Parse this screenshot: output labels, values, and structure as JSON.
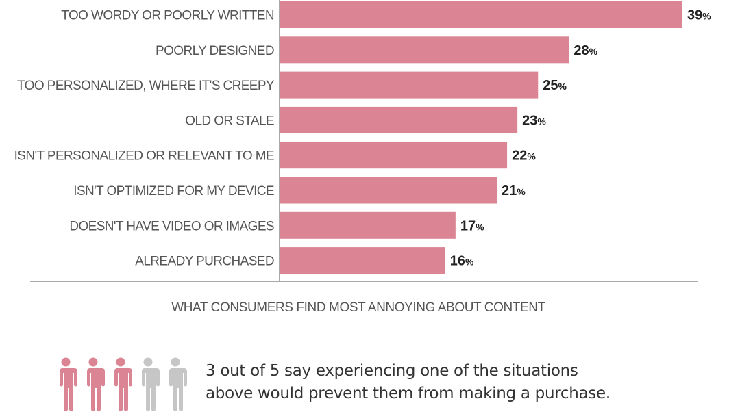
{
  "chart_data": {
    "type": "bar",
    "orientation": "horizontal",
    "categories": [
      "TOO WORDY OR POORLY WRITTEN",
      "POORLY DESIGNED",
      "TOO PERSONALIZED, WHERE IT'S CREEPY",
      "OLD OR STALE",
      "ISN'T PERSONALIZED OR RELEVANT TO ME",
      "ISN'T OPTIMIZED FOR MY DEVICE",
      "DOESN'T HAVE VIDEO OR IMAGES",
      "ALREADY PURCHASED"
    ],
    "values": [
      39,
      28,
      25,
      23,
      22,
      21,
      17,
      16
    ],
    "value_suffix": "%",
    "xlabel": "WHAT CONSUMERS FIND MOST ANNOYING ABOUT CONTENT",
    "xlim": [
      0,
      40
    ],
    "bar_color": "#db8493",
    "grid": false
  },
  "footnote": {
    "people_total": 5,
    "people_highlighted": 3,
    "highlight_color": "#db8493",
    "muted_color": "#c6c6c6",
    "line1": "3 out of 5 say experiencing one of the situations",
    "line2": "above would prevent them from making a purchase."
  }
}
